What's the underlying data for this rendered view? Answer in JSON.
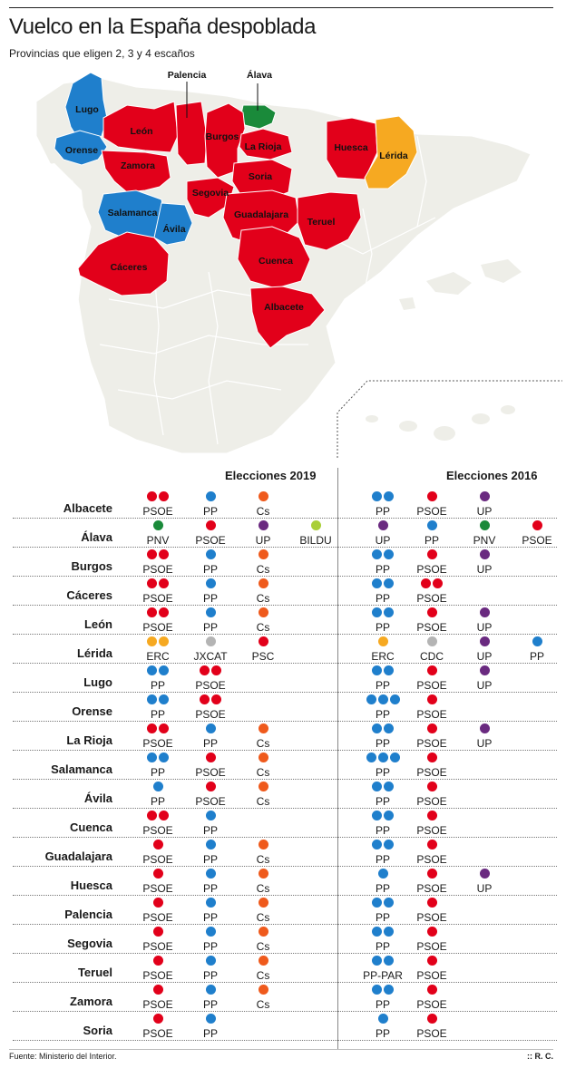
{
  "title": "Vuelco en la España despoblada",
  "subtitle": "Provincias que eligen 2, 3 y 4 escaños",
  "colors": {
    "PSOE": "#e2001a",
    "PP": "#1f7fcc",
    "Cs": "#ef5a1c",
    "UP": "#6a2a80",
    "PNV": "#1a8a3a",
    "BILDU": "#a9cf38",
    "ERC": "#f6a921",
    "JXCAT": "#b4b4b4",
    "CDC": "#b4b4b4",
    "PSC": "#e2001a",
    "PP-PAR": "#1f7fcc",
    "land": "#eeeee8",
    "border": "#ffffff"
  },
  "map": {
    "labels": {
      "lugo": "Lugo",
      "orense": "Orense",
      "leon": "León",
      "zamora": "Zamora",
      "palencia": "Palencia",
      "alava": "Álava",
      "burgos": "Burgos",
      "larioja": "La Rioja",
      "soria": "Soria",
      "segovia": "Segovia",
      "huesca": "Huesca",
      "lerida": "Lérida",
      "salamanca": "Salamanca",
      "avila": "Ávila",
      "guadalajara": "Guadalajara",
      "teruel": "Teruel",
      "caceres": "Cáceres",
      "cuenca": "Cuenca",
      "albacete": "Albacete"
    }
  },
  "table": {
    "header_2019": "Elecciones 2019",
    "header_2016": "Elecciones 2016",
    "rows": [
      {
        "province": "Albacete",
        "e2019": [
          {
            "party": "PSOE",
            "seats": 2
          },
          {
            "party": "PP",
            "seats": 1
          },
          {
            "party": "Cs",
            "seats": 1
          }
        ],
        "e2016": [
          {
            "party": "PP",
            "seats": 2
          },
          {
            "party": "PSOE",
            "seats": 1
          },
          {
            "party": "UP",
            "seats": 1
          }
        ]
      },
      {
        "province": "Álava",
        "e2019": [
          {
            "party": "PNV",
            "seats": 1
          },
          {
            "party": "PSOE",
            "seats": 1
          },
          {
            "party": "UP",
            "seats": 1
          },
          {
            "party": "BILDU",
            "seats": 1
          }
        ],
        "e2016": [
          {
            "party": "UP",
            "seats": 1
          },
          {
            "party": "PP",
            "seats": 1
          },
          {
            "party": "PNV",
            "seats": 1
          },
          {
            "party": "PSOE",
            "seats": 1
          }
        ]
      },
      {
        "province": "Burgos",
        "e2019": [
          {
            "party": "PSOE",
            "seats": 2
          },
          {
            "party": "PP",
            "seats": 1
          },
          {
            "party": "Cs",
            "seats": 1
          }
        ],
        "e2016": [
          {
            "party": "PP",
            "seats": 2
          },
          {
            "party": "PSOE",
            "seats": 1
          },
          {
            "party": "UP",
            "seats": 1
          }
        ]
      },
      {
        "province": "Cáceres",
        "e2019": [
          {
            "party": "PSOE",
            "seats": 2
          },
          {
            "party": "PP",
            "seats": 1
          },
          {
            "party": "Cs",
            "seats": 1
          }
        ],
        "e2016": [
          {
            "party": "PP",
            "seats": 2
          },
          {
            "party": "PSOE",
            "seats": 2
          }
        ]
      },
      {
        "province": "León",
        "e2019": [
          {
            "party": "PSOE",
            "seats": 2
          },
          {
            "party": "PP",
            "seats": 1
          },
          {
            "party": "Cs",
            "seats": 1
          }
        ],
        "e2016": [
          {
            "party": "PP",
            "seats": 2
          },
          {
            "party": "PSOE",
            "seats": 1
          },
          {
            "party": "UP",
            "seats": 1
          }
        ]
      },
      {
        "province": "Lérida",
        "e2019": [
          {
            "party": "ERC",
            "seats": 2
          },
          {
            "party": "JXCAT",
            "seats": 1
          },
          {
            "party": "PSC",
            "seats": 1
          }
        ],
        "e2016": [
          {
            "party": "ERC",
            "seats": 1
          },
          {
            "party": "CDC",
            "seats": 1
          },
          {
            "party": "UP",
            "seats": 1
          },
          {
            "party": "PP",
            "seats": 1
          }
        ]
      },
      {
        "province": "Lugo",
        "e2019": [
          {
            "party": "PP",
            "seats": 2
          },
          {
            "party": "PSOE",
            "seats": 2
          }
        ],
        "e2016": [
          {
            "party": "PP",
            "seats": 2
          },
          {
            "party": "PSOE",
            "seats": 1
          },
          {
            "party": "UP",
            "seats": 1
          }
        ]
      },
      {
        "province": "Orense",
        "e2019": [
          {
            "party": "PP",
            "seats": 2
          },
          {
            "party": "PSOE",
            "seats": 2
          }
        ],
        "e2016": [
          {
            "party": "PP",
            "seats": 3
          },
          {
            "party": "PSOE",
            "seats": 1
          }
        ]
      },
      {
        "province": "La Rioja",
        "e2019": [
          {
            "party": "PSOE",
            "seats": 2
          },
          {
            "party": "PP",
            "seats": 1
          },
          {
            "party": "Cs",
            "seats": 1
          }
        ],
        "e2016": [
          {
            "party": "PP",
            "seats": 2
          },
          {
            "party": "PSOE",
            "seats": 1
          },
          {
            "party": "UP",
            "seats": 1
          }
        ]
      },
      {
        "province": "Salamanca",
        "e2019": [
          {
            "party": "PP",
            "seats": 2
          },
          {
            "party": "PSOE",
            "seats": 1
          },
          {
            "party": "Cs",
            "seats": 1
          }
        ],
        "e2016": [
          {
            "party": "PP",
            "seats": 3
          },
          {
            "party": "PSOE",
            "seats": 1
          }
        ]
      },
      {
        "province": "Ávila",
        "e2019": [
          {
            "party": "PP",
            "seats": 1
          },
          {
            "party": "PSOE",
            "seats": 1
          },
          {
            "party": "Cs",
            "seats": 1
          }
        ],
        "e2016": [
          {
            "party": "PP",
            "seats": 2
          },
          {
            "party": "PSOE",
            "seats": 1
          }
        ]
      },
      {
        "province": "Cuenca",
        "e2019": [
          {
            "party": "PSOE",
            "seats": 2
          },
          {
            "party": "PP",
            "seats": 1
          }
        ],
        "e2016": [
          {
            "party": "PP",
            "seats": 2
          },
          {
            "party": "PSOE",
            "seats": 1
          }
        ]
      },
      {
        "province": "Guadalajara",
        "e2019": [
          {
            "party": "PSOE",
            "seats": 1
          },
          {
            "party": "PP",
            "seats": 1
          },
          {
            "party": "Cs",
            "seats": 1
          }
        ],
        "e2016": [
          {
            "party": "PP",
            "seats": 2
          },
          {
            "party": "PSOE",
            "seats": 1
          }
        ]
      },
      {
        "province": "Huesca",
        "e2019": [
          {
            "party": "PSOE",
            "seats": 1
          },
          {
            "party": "PP",
            "seats": 1
          },
          {
            "party": "Cs",
            "seats": 1
          }
        ],
        "e2016": [
          {
            "party": "PP",
            "seats": 1
          },
          {
            "party": "PSOE",
            "seats": 1
          },
          {
            "party": "UP",
            "seats": 1
          }
        ]
      },
      {
        "province": "Palencia",
        "e2019": [
          {
            "party": "PSOE",
            "seats": 1
          },
          {
            "party": "PP",
            "seats": 1
          },
          {
            "party": "Cs",
            "seats": 1
          }
        ],
        "e2016": [
          {
            "party": "PP",
            "seats": 2
          },
          {
            "party": "PSOE",
            "seats": 1
          }
        ]
      },
      {
        "province": "Segovia",
        "e2019": [
          {
            "party": "PSOE",
            "seats": 1
          },
          {
            "party": "PP",
            "seats": 1
          },
          {
            "party": "Cs",
            "seats": 1
          }
        ],
        "e2016": [
          {
            "party": "PP",
            "seats": 2
          },
          {
            "party": "PSOE",
            "seats": 1
          }
        ]
      },
      {
        "province": "Teruel",
        "e2019": [
          {
            "party": "PSOE",
            "seats": 1
          },
          {
            "party": "PP",
            "seats": 1
          },
          {
            "party": "Cs",
            "seats": 1
          }
        ],
        "e2016": [
          {
            "party": "PP-PAR",
            "seats": 2
          },
          {
            "party": "PSOE",
            "seats": 1
          }
        ]
      },
      {
        "province": "Zamora",
        "e2019": [
          {
            "party": "PSOE",
            "seats": 1
          },
          {
            "party": "PP",
            "seats": 1
          },
          {
            "party": "Cs",
            "seats": 1
          }
        ],
        "e2016": [
          {
            "party": "PP",
            "seats": 2
          },
          {
            "party": "PSOE",
            "seats": 1
          }
        ]
      },
      {
        "province": "Soria",
        "e2019": [
          {
            "party": "PSOE",
            "seats": 1
          },
          {
            "party": "PP",
            "seats": 1
          }
        ],
        "e2016": [
          {
            "party": "PP",
            "seats": 1
          },
          {
            "party": "PSOE",
            "seats": 1
          }
        ]
      }
    ]
  },
  "source": "Fuente: Ministerio del Interior.",
  "credit": ":: R. C."
}
